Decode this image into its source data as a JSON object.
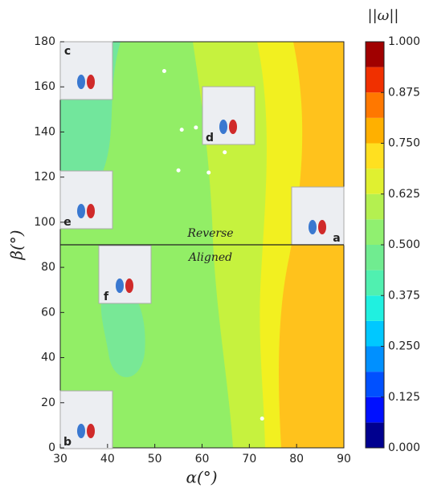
{
  "chart_data": {
    "type": "contour",
    "xlabel": "α(°)",
    "ylabel": "β(°)",
    "colorbar_label": "||ω||",
    "xlim": [
      30,
      90
    ],
    "xticks": [
      30,
      40,
      50,
      60,
      70,
      80,
      90
    ],
    "ylim": [
      0,
      180
    ],
    "yticks": [
      0,
      20,
      40,
      60,
      80,
      100,
      120,
      140,
      160,
      180
    ],
    "clim": [
      0,
      1
    ],
    "cticks": [
      {
        "value": 0,
        "label": "0.000"
      },
      {
        "value": 0.125,
        "label": "0.125"
      },
      {
        "value": 0.25,
        "label": "0.250"
      },
      {
        "value": 0.375,
        "label": "0.375"
      },
      {
        "value": 0.5,
        "label": "0.500"
      },
      {
        "value": 0.625,
        "label": "0.625"
      },
      {
        "value": 0.75,
        "label": "0.750"
      },
      {
        "value": 0.875,
        "label": "0.875"
      },
      {
        "value": 1,
        "label": "1.000"
      }
    ],
    "levels": [
      0,
      0.0625,
      0.125,
      0.1875,
      0.25,
      0.3125,
      0.375,
      0.4375,
      0.5,
      0.5625,
      0.625,
      0.6875,
      0.75,
      0.8125,
      0.875,
      0.9375,
      1
    ],
    "colors": [
      "#00008f",
      "#0010ff",
      "#0050ff",
      "#0090ff",
      "#00c8ff",
      "#20f0e0",
      "#50f0b0",
      "#70ec90",
      "#90f070",
      "#b4f050",
      "#e0f030",
      "#ffe020",
      "#ffb000",
      "#ff7800",
      "#f03000",
      "#a00000"
    ],
    "divider": 90,
    "annotations": [
      "Reverse",
      "Aligned"
    ],
    "points": {
      "x": [
        52,
        55.7,
        58.7,
        64.8,
        55,
        61.4,
        72.7
      ],
      "y": [
        167,
        141,
        142,
        131,
        123,
        122,
        13
      ]
    },
    "insets": [
      "c",
      "d",
      "e",
      "a",
      "f",
      "b"
    ]
  }
}
